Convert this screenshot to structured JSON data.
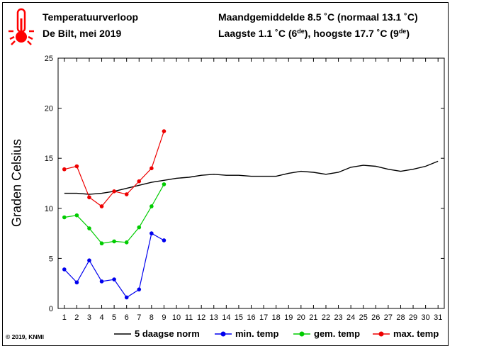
{
  "header": {
    "title": "Temperatuurverloop",
    "subtitle": "De Bilt, mei 2019",
    "monthly_mean_prefix": "Maandgemiddelde 8.5 ˚C (normaal 13.1 ˚C)",
    "lowest_prefix": "Laagste 1.1 ˚C (6",
    "lowest_sup": "de",
    "highest_mid": "), hoogste 17.7 ˚C (9",
    "highest_sup": "de",
    "highest_suffix": ")",
    "icon": "thermometer-icon"
  },
  "footer": {
    "copyright": "© 2019, KNMI"
  },
  "colors": {
    "norm": "#000000",
    "min": "#0000ee",
    "mean": "#00cc00",
    "max": "#ee0000",
    "icon": "#ff0000"
  },
  "chart_data": {
    "type": "line",
    "ylabel": "Graden Celsius",
    "ylim": [
      0,
      25
    ],
    "yticks": [
      0,
      5,
      10,
      15,
      20,
      25
    ],
    "xlim": [
      0.5,
      31.5
    ],
    "x": [
      1,
      2,
      3,
      4,
      5,
      6,
      7,
      8,
      9,
      10,
      11,
      12,
      13,
      14,
      15,
      16,
      17,
      18,
      19,
      20,
      21,
      22,
      23,
      24,
      25,
      26,
      27,
      28,
      29,
      30,
      31
    ],
    "grid": false,
    "legend_position": "bottom",
    "series": [
      {
        "name": "5 daagse norm",
        "key": "norm",
        "marker": false,
        "x": [
          1,
          2,
          3,
          4,
          5,
          6,
          7,
          8,
          9,
          10,
          11,
          12,
          13,
          14,
          15,
          16,
          17,
          18,
          19,
          20,
          21,
          22,
          23,
          24,
          25,
          26,
          27,
          28,
          29,
          30,
          31
        ],
        "values": [
          11.5,
          11.5,
          11.4,
          11.5,
          11.7,
          12.0,
          12.3,
          12.6,
          12.8,
          13.0,
          13.1,
          13.3,
          13.4,
          13.3,
          13.3,
          13.2,
          13.2,
          13.2,
          13.5,
          13.7,
          13.6,
          13.4,
          13.6,
          14.1,
          14.3,
          14.2,
          13.9,
          13.7,
          13.9,
          14.2,
          14.7
        ]
      },
      {
        "name": "min. temp",
        "key": "min",
        "marker": true,
        "x": [
          1,
          2,
          3,
          4,
          5,
          6,
          7,
          8,
          9
        ],
        "values": [
          3.9,
          2.6,
          4.8,
          2.7,
          2.9,
          1.1,
          1.9,
          7.5,
          6.8
        ]
      },
      {
        "name": "gem. temp",
        "key": "mean",
        "marker": true,
        "x": [
          1,
          2,
          3,
          4,
          5,
          6,
          7,
          8,
          9
        ],
        "values": [
          9.1,
          9.3,
          8.0,
          6.5,
          6.7,
          6.6,
          8.1,
          10.2,
          12.4
        ]
      },
      {
        "name": "max. temp",
        "key": "max",
        "marker": true,
        "x": [
          1,
          2,
          3,
          4,
          5,
          6,
          7,
          8,
          9
        ],
        "values": [
          13.9,
          14.2,
          11.1,
          10.2,
          11.7,
          11.4,
          12.7,
          14.0,
          17.7
        ]
      }
    ]
  }
}
